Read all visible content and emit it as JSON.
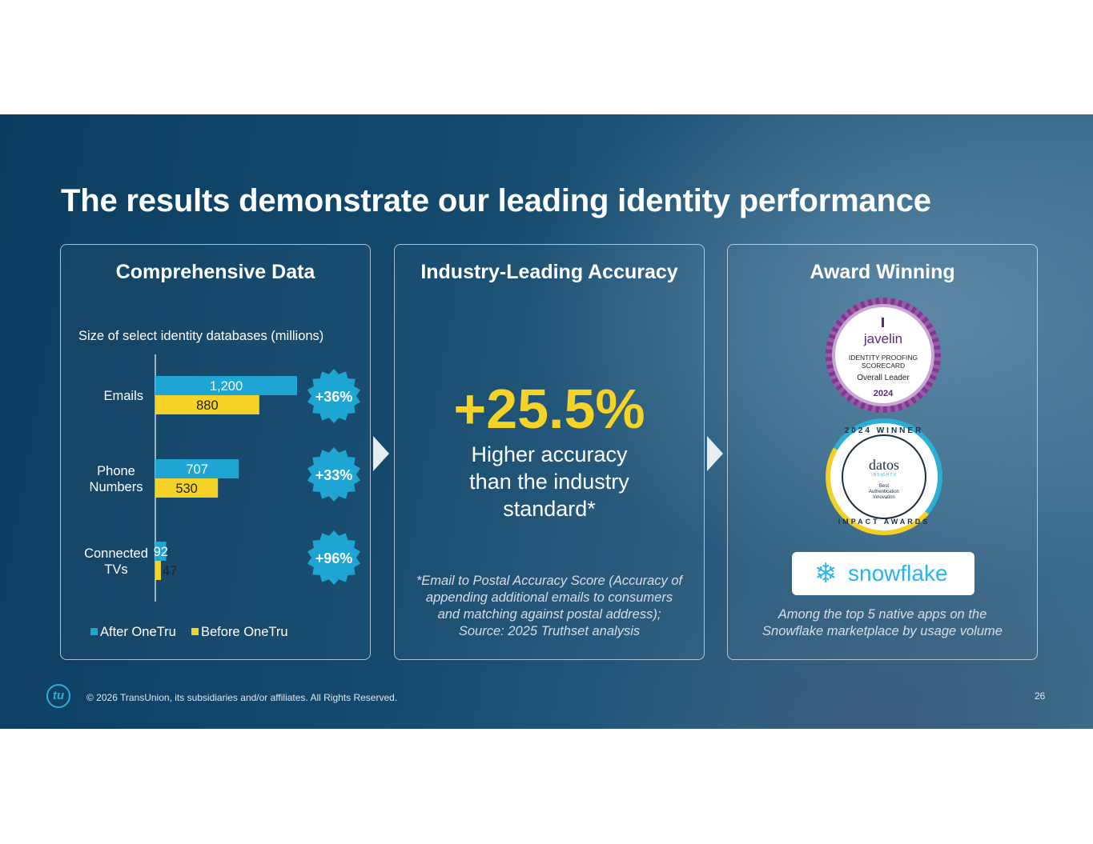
{
  "slide": {
    "title": "The results demonstrate our leading identity performance"
  },
  "cards": {
    "data": {
      "title": "Comprehensive Data"
    },
    "accuracy": {
      "title": "Industry-Leading Accuracy",
      "big_number": "+25.5%",
      "description": [
        "Higher accuracy",
        "than the industry",
        "standard*"
      ],
      "footnote": [
        "*Email to Postal Accuracy Score (Accuracy of",
        "appending additional emails to consumers",
        "and matching against postal address);",
        "Source: 2025 Truthset analysis"
      ]
    },
    "award": {
      "title": "Award Winning",
      "javelin": {
        "brand": "javelin",
        "line1": "IDENTITY PROOFING",
        "line2": "SCORECARD",
        "line3": "Overall Leader",
        "year": "2024"
      },
      "datos": {
        "top": "2024 WINNER",
        "brand": "datos",
        "sub": "INSIGHTS",
        "cap1": "Best",
        "cap2": "Authentication",
        "cap3": "Innovation",
        "bottom": "IMPACT AWARDS"
      },
      "snowflake": {
        "brand": "snowflake",
        "icon": "snowflake-icon"
      },
      "caption": [
        "Among the top 5 native apps on the",
        "Snowflake marketplace by usage volume"
      ]
    }
  },
  "chart_data": {
    "type": "bar",
    "orientation": "horizontal",
    "title": "Size of select identity databases (millions)",
    "categories": [
      "Emails",
      "Phone Numbers",
      "Connected TVs"
    ],
    "series": [
      {
        "name": "After OneTru",
        "color": "#1ea5d3",
        "values": [
          1200,
          707,
          92
        ],
        "labels": [
          "1,200",
          "707",
          "92"
        ]
      },
      {
        "name": "Before OneTru",
        "color": "#f5d327",
        "values": [
          880,
          530,
          47
        ],
        "labels": [
          "880",
          "530",
          "47"
        ]
      }
    ],
    "annotations": [
      "+36%",
      "+33%",
      "+96%"
    ],
    "legend": "bottom-left",
    "grid": false
  },
  "footer": {
    "logo": "tu",
    "copyright": "© 2026 TransUnion, its subsidiaries and/or affiliates. All Rights Reserved.",
    "page": "26"
  },
  "colors": {
    "accent_yellow": "#f5d327",
    "accent_blue": "#1ea5d3",
    "background": "#134a6e"
  }
}
